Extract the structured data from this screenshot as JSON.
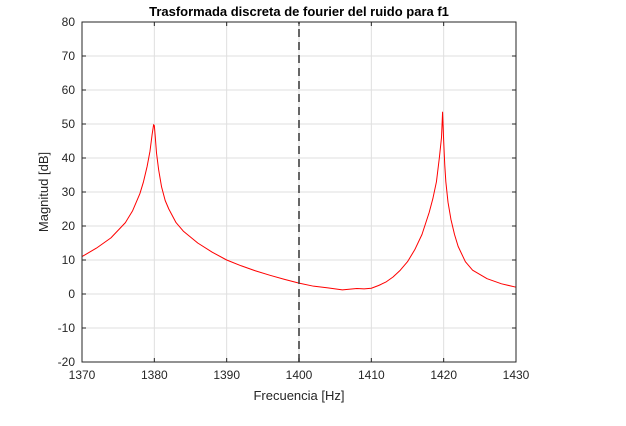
{
  "chart_data": {
    "type": "line",
    "title": "Trasformada discreta de fourier del ruido para f1",
    "xlabel": "Frecuencia [Hz]",
    "ylabel": "Magnitud [dB]",
    "xlim": [
      1370,
      1430
    ],
    "ylim": [
      -20,
      80
    ],
    "xticks": [
      1370,
      1380,
      1390,
      1400,
      1410,
      1420,
      1430
    ],
    "yticks": [
      -20,
      -10,
      0,
      10,
      20,
      30,
      40,
      50,
      60,
      70,
      80
    ],
    "xtick_labels": [
      "1370",
      "1380",
      "1390",
      "1400",
      "1410",
      "1420",
      "1430"
    ],
    "ytick_labels": [
      "-20",
      "-10",
      "0",
      "10",
      "20",
      "30",
      "40",
      "50",
      "60",
      "70",
      "80"
    ],
    "grid": true,
    "series": [
      {
        "color": "#ff0000",
        "style": "solid",
        "x": [
          1370,
          1372,
          1374,
          1376,
          1377,
          1378,
          1378.5,
          1379,
          1379.4,
          1379.7,
          1379.9,
          1380,
          1380.1,
          1380.3,
          1380.6,
          1381,
          1381.5,
          1382,
          1383,
          1384,
          1386,
          1388,
          1390,
          1392,
          1394,
          1396,
          1398,
          1400,
          1402,
          1404,
          1406,
          1408,
          1409,
          1410,
          1411,
          1412,
          1413,
          1414,
          1415,
          1416,
          1417,
          1418,
          1418.5,
          1419,
          1419.4,
          1419.7,
          1419.85,
          1420,
          1420.15,
          1420.3,
          1420.6,
          1421,
          1421.5,
          1422,
          1423,
          1424,
          1426,
          1428,
          1430
        ],
        "y": [
          11,
          13.5,
          16.5,
          21,
          24.5,
          29.5,
          33,
          37.5,
          42,
          47,
          49.8,
          49.5,
          47,
          41.5,
          36.5,
          31.5,
          27.5,
          25,
          21,
          18.5,
          15,
          12.3,
          10,
          8.3,
          6.8,
          5.5,
          4.3,
          3.2,
          2.3,
          1.8,
          1.2,
          1.6,
          1.5,
          1.7,
          2.5,
          3.5,
          5,
          7,
          9.5,
          13,
          17.5,
          24,
          28,
          33,
          40,
          46,
          53.5,
          45,
          38,
          33,
          27,
          22,
          17.5,
          14,
          9.5,
          7,
          4.5,
          3,
          2
        ]
      },
      {
        "color": "#404040",
        "style": "dashed",
        "x": [
          1400,
          1400
        ],
        "y": [
          -20,
          80
        ]
      }
    ]
  }
}
